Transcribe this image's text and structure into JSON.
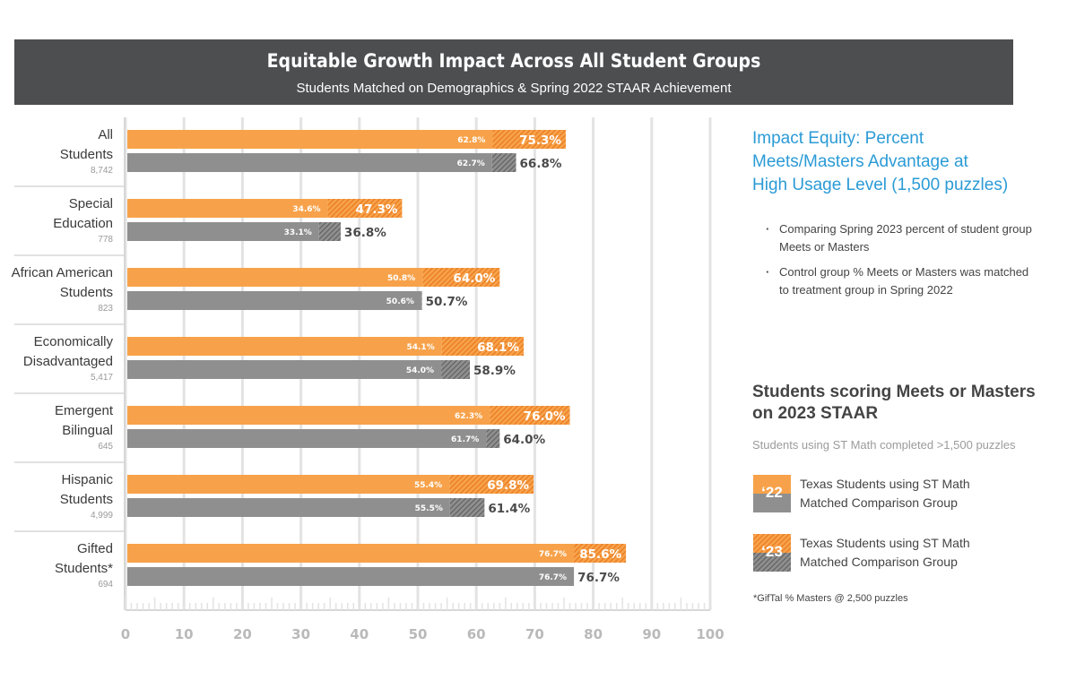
{
  "header": {
    "title": "Equitable Growth Impact Across All Student Groups",
    "subtitle": "Students Matched on Demographics & Spring 2022 STAAR Achievement"
  },
  "colors": {
    "treatment": "#f7a24a",
    "treatment_dark": "#e8761c",
    "comparison": "#8f8f8f",
    "comparison_dark": "#5e5e5e",
    "header_bg": "#4d4e50",
    "accent_blue": "#2b9bd6"
  },
  "chart_data": {
    "type": "bar",
    "orientation": "horizontal",
    "xlim": [
      0,
      100
    ],
    "xticks": [
      "0",
      "10",
      "20",
      "30",
      "40",
      "50",
      "60",
      "70",
      "80",
      "90",
      "100"
    ],
    "categories": [
      {
        "name": [
          "All",
          "Students"
        ],
        "n": "8,742"
      },
      {
        "name": [
          "Special",
          "Education"
        ],
        "n": "778"
      },
      {
        "name": [
          "African American",
          "Students"
        ],
        "n": "823"
      },
      {
        "name": [
          "Economically",
          "Disadvantaged"
        ],
        "n": "5,417"
      },
      {
        "name": [
          "Emergent",
          "Bilingual"
        ],
        "n": "645"
      },
      {
        "name": [
          "Hispanic",
          "Students"
        ],
        "n": "4,999"
      },
      {
        "name": [
          "Gifted",
          "Students*"
        ],
        "n": "694"
      }
    ],
    "series": [
      {
        "name": "Texas Students using ST Math",
        "values_2022": [
          62.8,
          34.6,
          50.8,
          54.1,
          62.3,
          55.4,
          76.7
        ],
        "labels_2022": [
          "62.8%",
          "34.6%",
          "50.8%",
          "54.1%",
          "62.3%",
          "55.4%",
          "76.7%"
        ],
        "values_2023": [
          75.3,
          47.3,
          64.0,
          68.1,
          76.0,
          69.8,
          85.6
        ],
        "labels_2023": [
          "75.3%",
          "47.3%",
          "64.0%",
          "68.1%",
          "76.0%",
          "69.8%",
          "85.6%"
        ]
      },
      {
        "name": "Matched Comparison Group",
        "values_2022": [
          62.7,
          33.1,
          50.6,
          54.0,
          61.7,
          55.5,
          76.7
        ],
        "labels_2022": [
          "62.7%",
          "33.1%",
          "50.6%",
          "54.0%",
          "61.7%",
          "55.5%",
          "76.7%"
        ],
        "values_2023": [
          66.8,
          36.8,
          50.7,
          58.9,
          64.0,
          61.4,
          76.7
        ],
        "labels_2023": [
          "66.8%",
          "36.8%",
          "50.7%",
          "58.9%",
          "64.0%",
          "61.4%",
          "76.7%"
        ]
      }
    ]
  },
  "side_panel": {
    "title_lines": [
      "Impact Equity: Percent",
      "Meets/Masters Advantage at",
      "High Usage Level (1,500 puzzles)"
    ],
    "bullets": [
      "Comparing Spring 2023 percent of student group Meets or Masters",
      "Control group % Meets or Masters was matched to treatment group in Spring 2022"
    ]
  },
  "legend": {
    "title_lines": [
      "Students scoring Meets or Masters",
      "on 2023 STAAR"
    ],
    "subtitle": "Students using ST Math completed >1,500 puzzles",
    "items": [
      {
        "year": "‘22",
        "line1": "Texas Students using ST Math",
        "line2": "Matched Comparison Group"
      },
      {
        "year": "‘23",
        "line1": "Texas Students using ST Math",
        "line2": "Matched Comparison Group"
      }
    ]
  },
  "footnote": "*GifTal % Masters @ 2,500 puzzles"
}
